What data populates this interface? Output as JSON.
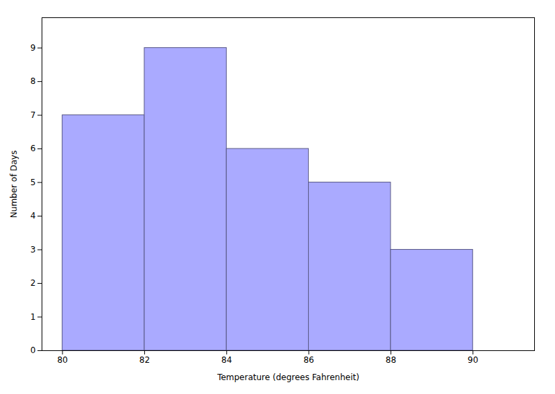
{
  "chart_data": {
    "type": "histogram",
    "bins": [
      80,
      82,
      84,
      86,
      88,
      90
    ],
    "values": [
      7,
      9,
      6,
      5,
      3
    ],
    "color": "#aaaaff",
    "xlabel": "Temperature (degrees Fahrenheit)",
    "ylabel": "Number of Days",
    "xlim": [
      79.5,
      91.5
    ],
    "ylim": [
      0,
      9.9
    ],
    "xticks": [
      80,
      82,
      84,
      86,
      88,
      90
    ],
    "yticks": [
      0,
      1,
      2,
      3,
      4,
      5,
      6,
      7,
      8,
      9
    ],
    "grid": false
  }
}
